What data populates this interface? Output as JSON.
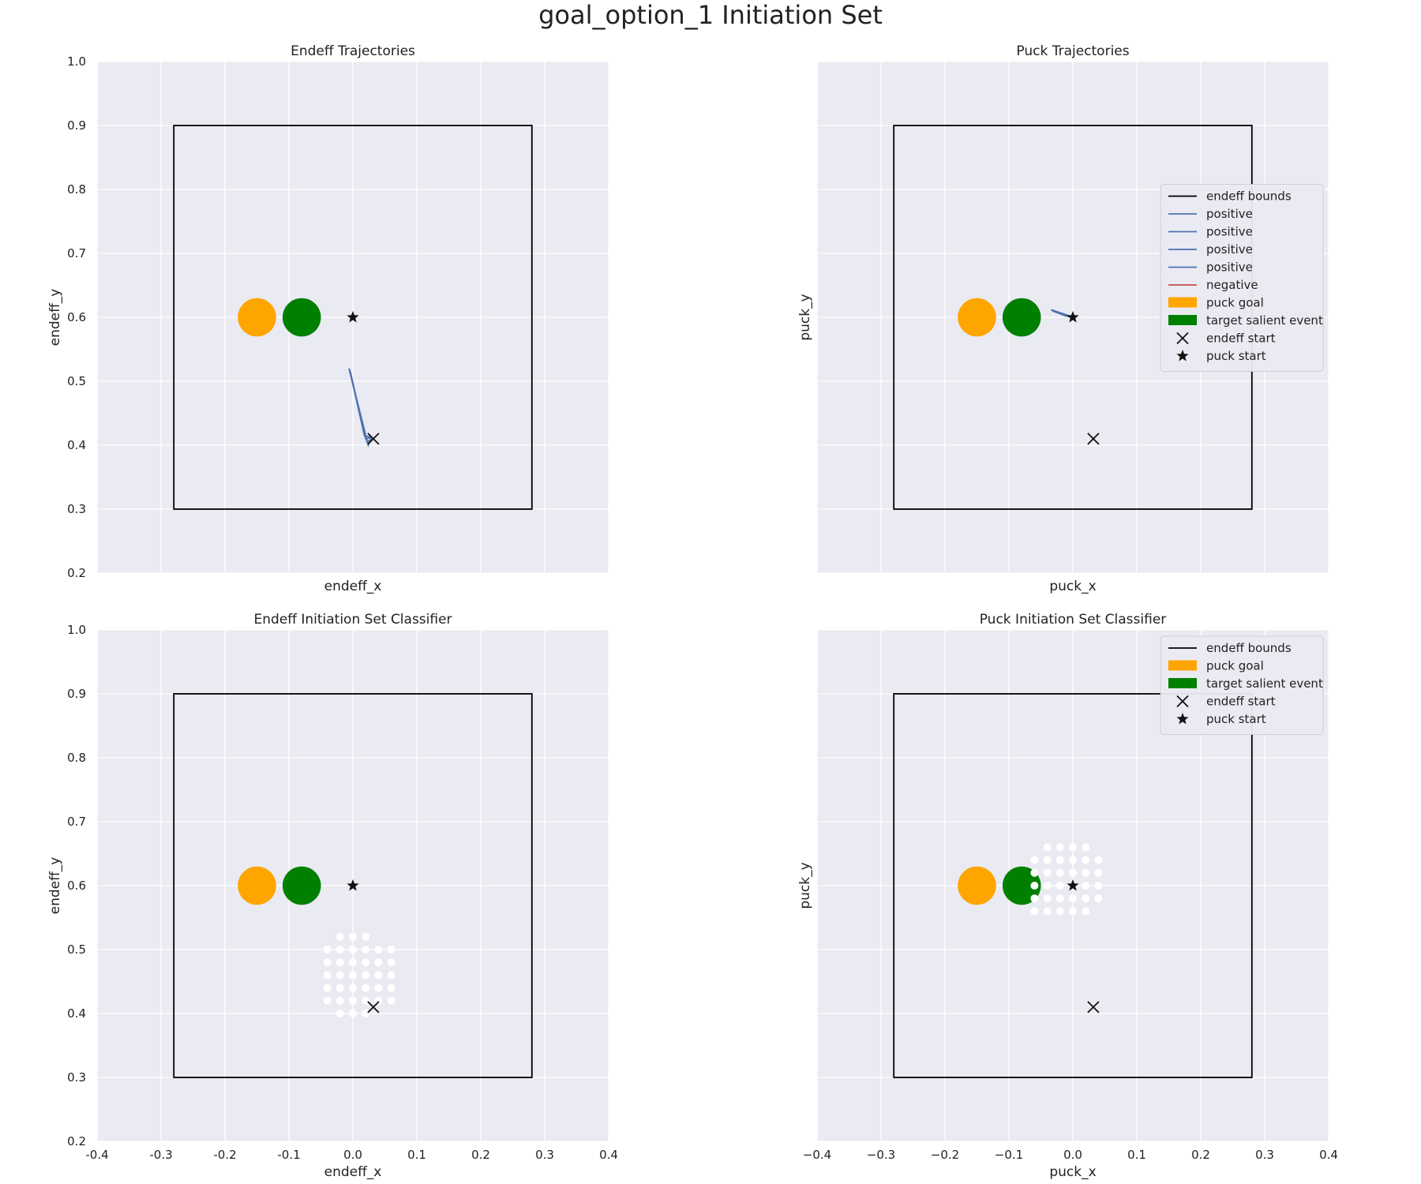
{
  "figure": {
    "suptitle": "goal_option_1 Initiation Set"
  },
  "colors": {
    "background": "#eaeaf2",
    "grid": "#ffffff",
    "bounds": "#000000",
    "positive": "#4c72b0",
    "negative": "#c44e52",
    "puck_goal": "#ffa500",
    "target_salient_event": "#008000",
    "marker": "#111111",
    "classifier_points": "#ffffff"
  },
  "chart_data": [
    {
      "type": "line",
      "title": "Endeff Trajectories",
      "xlabel": "endeff_x",
      "ylabel": "endeff_y",
      "xlim": [
        -0.4,
        0.4
      ],
      "ylim": [
        0.2,
        1.0
      ],
      "show_x_ticks": false,
      "show_y_ticks": true,
      "x_ticks": [
        "-0.4",
        "-0.3",
        "-0.2",
        "-0.1",
        "0.0",
        "0.1",
        "0.2",
        "0.3",
        "0.4"
      ],
      "y_ticks": [
        "0.2",
        "0.3",
        "0.4",
        "0.5",
        "0.6",
        "0.7",
        "0.8",
        "0.9",
        "1.0"
      ],
      "grid": true,
      "bounds": {
        "x": [
          -0.28,
          0.28
        ],
        "y": [
          0.3,
          0.9
        ]
      },
      "puck_goal": {
        "x": -0.15,
        "y": 0.6,
        "r": 0.03
      },
      "target_salient_event": {
        "x": -0.08,
        "y": 0.6,
        "r": 0.03
      },
      "endeff_start": {
        "x": 0.032,
        "y": 0.41
      },
      "puck_start": {
        "x": 0.0,
        "y": 0.6
      },
      "series": [
        {
          "label": "positive",
          "x": [
            -0.006,
            0.024,
            0.028
          ],
          "y": [
            0.52,
            0.4,
            0.41
          ]
        },
        {
          "label": "positive",
          "x": [
            -0.006,
            0.022,
            0.03
          ],
          "y": [
            0.52,
            0.405,
            0.41
          ]
        },
        {
          "label": "positive",
          "x": [
            -0.004,
            0.02,
            0.03
          ],
          "y": [
            0.515,
            0.41,
            0.412
          ]
        },
        {
          "label": "positive",
          "x": [
            -0.005,
            0.018,
            0.03
          ],
          "y": [
            0.518,
            0.415,
            0.412
          ]
        }
      ],
      "classifier_points": [],
      "legend": null
    },
    {
      "type": "line",
      "title": "Puck Trajectories",
      "xlabel": "puck_x",
      "ylabel": "puck_y",
      "xlim": [
        -0.4,
        0.4
      ],
      "ylim": [
        0.2,
        1.0
      ],
      "show_x_ticks": false,
      "show_y_ticks": false,
      "x_ticks": [
        "-0.4",
        "-0.3",
        "-0.2",
        "-0.1",
        "0.0",
        "0.1",
        "0.2",
        "0.3",
        "0.4"
      ],
      "y_ticks": [
        "0.2",
        "0.3",
        "0.4",
        "0.5",
        "0.6",
        "0.7",
        "0.8",
        "0.9",
        "1.0"
      ],
      "grid": true,
      "bounds": {
        "x": [
          -0.28,
          0.28
        ],
        "y": [
          0.3,
          0.9
        ]
      },
      "puck_goal": {
        "x": -0.15,
        "y": 0.6,
        "r": 0.03
      },
      "target_salient_event": {
        "x": -0.08,
        "y": 0.6,
        "r": 0.03
      },
      "endeff_start": {
        "x": 0.032,
        "y": 0.41
      },
      "puck_start": {
        "x": 0.0,
        "y": 0.6
      },
      "series": [
        {
          "label": "positive",
          "x": [
            -0.034,
            -0.01,
            0.0
          ],
          "y": [
            0.612,
            0.604,
            0.6
          ]
        },
        {
          "label": "positive",
          "x": [
            -0.033,
            -0.01,
            0.0
          ],
          "y": [
            0.611,
            0.603,
            0.6
          ]
        },
        {
          "label": "positive",
          "x": [
            -0.032,
            -0.012,
            0.0
          ],
          "y": [
            0.61,
            0.603,
            0.6
          ]
        },
        {
          "label": "positive",
          "x": [
            -0.031,
            -0.011,
            0.0
          ],
          "y": [
            0.61,
            0.602,
            0.6
          ]
        }
      ],
      "classifier_points": [],
      "legend": {
        "position": "center-right",
        "entries": [
          {
            "label": "endeff bounds",
            "kind": "line",
            "color_key": "bounds"
          },
          {
            "label": "positive",
            "kind": "line",
            "color_key": "positive"
          },
          {
            "label": "positive",
            "kind": "line",
            "color_key": "positive"
          },
          {
            "label": "positive",
            "kind": "line",
            "color_key": "positive"
          },
          {
            "label": "positive",
            "kind": "line",
            "color_key": "positive"
          },
          {
            "label": "negative",
            "kind": "line",
            "color_key": "negative"
          },
          {
            "label": "puck goal",
            "kind": "patch",
            "color_key": "puck_goal"
          },
          {
            "label": "target salient event",
            "kind": "patch",
            "color_key": "target_salient_event"
          },
          {
            "label": "endeff start",
            "kind": "x",
            "color_key": "marker"
          },
          {
            "label": "puck start",
            "kind": "star",
            "color_key": "marker"
          }
        ]
      }
    },
    {
      "type": "scatter",
      "title": "Endeff Initiation Set Classifier",
      "xlabel": "endeff_x",
      "ylabel": "endeff_y",
      "xlim": [
        -0.4,
        0.4
      ],
      "ylim": [
        0.2,
        1.0
      ],
      "show_x_ticks": true,
      "show_y_ticks": true,
      "x_ticks": [
        "-0.4",
        "-0.3",
        "-0.2",
        "-0.1",
        "0.0",
        "0.1",
        "0.2",
        "0.3",
        "0.4"
      ],
      "y_ticks": [
        "0.2",
        "0.3",
        "0.4",
        "0.5",
        "0.6",
        "0.7",
        "0.8",
        "0.9",
        "1.0"
      ],
      "grid": true,
      "bounds": {
        "x": [
          -0.28,
          0.28
        ],
        "y": [
          0.3,
          0.9
        ]
      },
      "puck_goal": {
        "x": -0.15,
        "y": 0.6,
        "r": 0.03
      },
      "target_salient_event": {
        "x": -0.08,
        "y": 0.6,
        "r": 0.03
      },
      "endeff_start": {
        "x": 0.032,
        "y": 0.41
      },
      "puck_start": {
        "x": 0.0,
        "y": 0.6
      },
      "series": [],
      "classifier_points": [
        [
          -0.02,
          0.52
        ],
        [
          0.0,
          0.52
        ],
        [
          0.02,
          0.52
        ],
        [
          -0.04,
          0.5
        ],
        [
          -0.02,
          0.5
        ],
        [
          0.0,
          0.5
        ],
        [
          0.02,
          0.5
        ],
        [
          0.04,
          0.5
        ],
        [
          0.06,
          0.5
        ],
        [
          -0.04,
          0.48
        ],
        [
          -0.02,
          0.48
        ],
        [
          0.0,
          0.48
        ],
        [
          0.02,
          0.48
        ],
        [
          0.04,
          0.48
        ],
        [
          0.06,
          0.48
        ],
        [
          -0.04,
          0.46
        ],
        [
          -0.02,
          0.46
        ],
        [
          0.0,
          0.46
        ],
        [
          0.02,
          0.46
        ],
        [
          0.04,
          0.46
        ],
        [
          0.06,
          0.46
        ],
        [
          -0.04,
          0.44
        ],
        [
          -0.02,
          0.44
        ],
        [
          0.0,
          0.44
        ],
        [
          0.02,
          0.44
        ],
        [
          0.04,
          0.44
        ],
        [
          0.06,
          0.44
        ],
        [
          -0.04,
          0.42
        ],
        [
          -0.02,
          0.42
        ],
        [
          0.0,
          0.42
        ],
        [
          0.02,
          0.42
        ],
        [
          0.04,
          0.42
        ],
        [
          0.06,
          0.42
        ],
        [
          -0.02,
          0.4
        ],
        [
          0.0,
          0.4
        ],
        [
          0.02,
          0.4
        ]
      ],
      "legend": null
    },
    {
      "type": "scatter",
      "title": "Puck Initiation Set Classifier",
      "xlabel": "puck_x",
      "ylabel": "puck_y",
      "xlim": [
        -0.4,
        0.4
      ],
      "ylim": [
        0.2,
        1.0
      ],
      "show_x_ticks": true,
      "show_y_ticks": false,
      "x_ticks": [
        "−0.4",
        "−0.3",
        "−0.2",
        "−0.1",
        "0.0",
        "0.1",
        "0.2",
        "0.3",
        "0.4"
      ],
      "y_ticks": [
        "0.2",
        "0.3",
        "0.4",
        "0.5",
        "0.6",
        "0.7",
        "0.8",
        "0.9",
        "1.0"
      ],
      "grid": true,
      "bounds": {
        "x": [
          -0.28,
          0.28
        ],
        "y": [
          0.3,
          0.9
        ]
      },
      "puck_goal": {
        "x": -0.15,
        "y": 0.6,
        "r": 0.03
      },
      "target_salient_event": {
        "x": -0.08,
        "y": 0.6,
        "r": 0.03
      },
      "endeff_start": {
        "x": 0.032,
        "y": 0.41
      },
      "puck_start": {
        "x": 0.0,
        "y": 0.6
      },
      "series": [],
      "classifier_points": [
        [
          -0.04,
          0.66
        ],
        [
          -0.02,
          0.66
        ],
        [
          0.0,
          0.66
        ],
        [
          0.02,
          0.66
        ],
        [
          -0.06,
          0.64
        ],
        [
          -0.04,
          0.64
        ],
        [
          -0.02,
          0.64
        ],
        [
          0.0,
          0.64
        ],
        [
          0.02,
          0.64
        ],
        [
          0.04,
          0.64
        ],
        [
          -0.06,
          0.62
        ],
        [
          -0.04,
          0.62
        ],
        [
          -0.02,
          0.62
        ],
        [
          0.0,
          0.62
        ],
        [
          0.02,
          0.62
        ],
        [
          0.04,
          0.62
        ],
        [
          -0.06,
          0.6
        ],
        [
          -0.04,
          0.6
        ],
        [
          -0.02,
          0.6
        ],
        [
          0.0,
          0.6
        ],
        [
          0.02,
          0.6
        ],
        [
          0.04,
          0.6
        ],
        [
          -0.06,
          0.58
        ],
        [
          -0.04,
          0.58
        ],
        [
          -0.02,
          0.58
        ],
        [
          0.0,
          0.58
        ],
        [
          0.02,
          0.58
        ],
        [
          0.04,
          0.58
        ],
        [
          -0.06,
          0.56
        ],
        [
          -0.04,
          0.56
        ],
        [
          -0.02,
          0.56
        ],
        [
          0.0,
          0.56
        ],
        [
          0.02,
          0.56
        ]
      ],
      "legend": {
        "position": "top-right",
        "entries": [
          {
            "label": "endeff bounds",
            "kind": "line",
            "color_key": "bounds"
          },
          {
            "label": "puck goal",
            "kind": "patch",
            "color_key": "puck_goal"
          },
          {
            "label": "target salient event",
            "kind": "patch",
            "color_key": "target_salient_event"
          },
          {
            "label": "endeff start",
            "kind": "x",
            "color_key": "marker"
          },
          {
            "label": "puck start",
            "kind": "star",
            "color_key": "marker"
          }
        ]
      }
    }
  ]
}
